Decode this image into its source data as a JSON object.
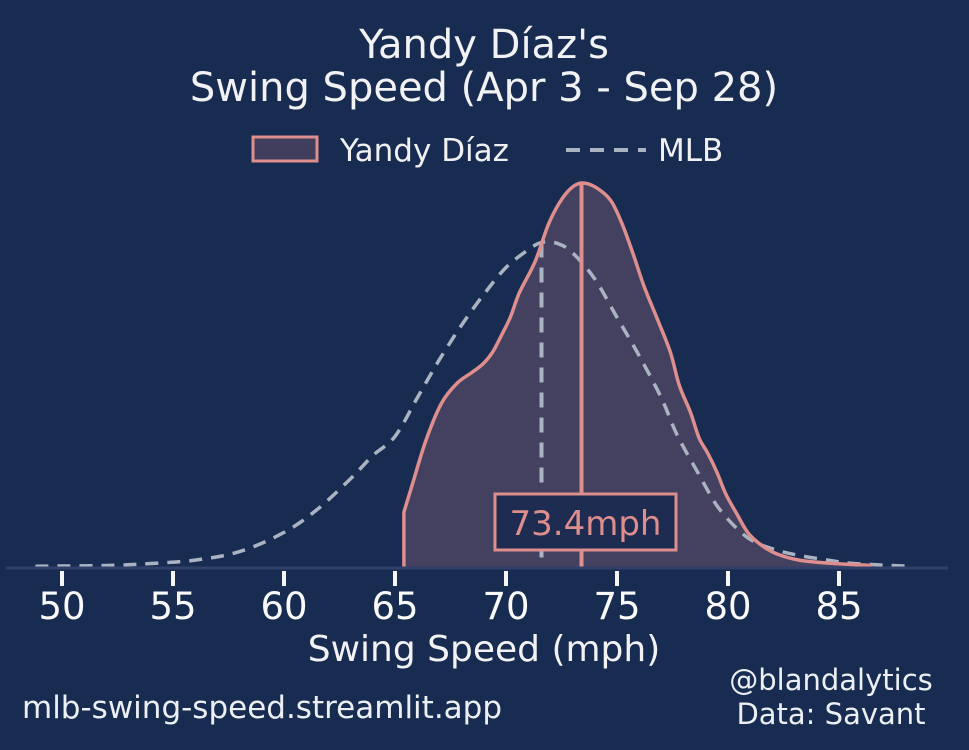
{
  "title": {
    "line1": "Yandy Díaz's",
    "line2": "Swing Speed (Apr 3 - Sep 28)"
  },
  "legend": {
    "player_label": "Yandy Díaz",
    "league_label": "MLB"
  },
  "annotation": {
    "median_label": "73.4mph"
  },
  "axis": {
    "label": "Swing Speed (mph)",
    "ticks": [
      "50",
      "55",
      "60",
      "65",
      "70",
      "75",
      "80",
      "85"
    ]
  },
  "footer": {
    "site": "mlb-swing-speed.streamlit.app",
    "handle": "@blandalytics",
    "source": "Data: Savant"
  },
  "colors": {
    "background": "#182b50",
    "player_line": "#dd8e8d",
    "player_fill": "#434060",
    "league_line": "#aab3c1",
    "text": "#f2f2f4",
    "axis_line": "#31406a",
    "annotation_fill": "#1d2c50"
  },
  "chart_data": {
    "type": "area",
    "title": "Yandy Díaz's Swing Speed (Apr 3 - Sep 28)",
    "xlabel": "Swing Speed (mph)",
    "xlim": [
      47.2,
      90.8
    ],
    "x_ticks": [
      50,
      55,
      60,
      65,
      70,
      75,
      80,
      85
    ],
    "grid": false,
    "legend_position": "top",
    "player_median_mph": 73.4,
    "league_mean_mph": 71.6,
    "series": [
      {
        "name": "Yandy Díaz",
        "style": "filled-kde",
        "points": [
          [
            65.4,
            0.0
          ],
          [
            65.4,
            0.143
          ],
          [
            65.8,
            0.219
          ],
          [
            66.4,
            0.331
          ],
          [
            67.1,
            0.427
          ],
          [
            67.8,
            0.479
          ],
          [
            68.5,
            0.508
          ],
          [
            69.0,
            0.531
          ],
          [
            69.4,
            0.56
          ],
          [
            69.8,
            0.604
          ],
          [
            70.2,
            0.651
          ],
          [
            70.6,
            0.714
          ],
          [
            71.3,
            0.794
          ],
          [
            71.9,
            0.891
          ],
          [
            72.4,
            0.948
          ],
          [
            72.9,
            0.985
          ],
          [
            73.4,
            1.0
          ],
          [
            74.0,
            0.99
          ],
          [
            74.7,
            0.956
          ],
          [
            75.2,
            0.898
          ],
          [
            75.7,
            0.82
          ],
          [
            76.2,
            0.734
          ],
          [
            76.8,
            0.648
          ],
          [
            77.4,
            0.56
          ],
          [
            77.8,
            0.474
          ],
          [
            78.3,
            0.404
          ],
          [
            78.7,
            0.336
          ],
          [
            79.1,
            0.295
          ],
          [
            79.5,
            0.247
          ],
          [
            79.9,
            0.19
          ],
          [
            80.4,
            0.138
          ],
          [
            80.9,
            0.089
          ],
          [
            81.5,
            0.057
          ],
          [
            82.2,
            0.034
          ],
          [
            83.2,
            0.018
          ],
          [
            84.6,
            0.01
          ],
          [
            86.5,
            0.004
          ]
        ]
      },
      {
        "name": "MLB",
        "style": "dashed-kde",
        "points": [
          [
            48.8,
            0.002
          ],
          [
            52.0,
            0.004
          ],
          [
            54.0,
            0.009
          ],
          [
            56.0,
            0.018
          ],
          [
            58.0,
            0.04
          ],
          [
            60.0,
            0.09
          ],
          [
            61.5,
            0.15
          ],
          [
            63.0,
            0.23
          ],
          [
            64.0,
            0.29
          ],
          [
            65.0,
            0.34
          ],
          [
            66.0,
            0.44
          ],
          [
            67.0,
            0.54
          ],
          [
            68.0,
            0.63
          ],
          [
            69.0,
            0.71
          ],
          [
            70.0,
            0.78
          ],
          [
            71.0,
            0.826
          ],
          [
            71.6,
            0.845
          ],
          [
            72.3,
            0.843
          ],
          [
            73.0,
            0.818
          ],
          [
            74.0,
            0.75
          ],
          [
            75.0,
            0.65
          ],
          [
            76.0,
            0.55
          ],
          [
            77.0,
            0.44
          ],
          [
            77.7,
            0.345
          ],
          [
            78.7,
            0.24
          ],
          [
            79.5,
            0.16
          ],
          [
            80.4,
            0.1
          ],
          [
            81.2,
            0.065
          ],
          [
            82.2,
            0.044
          ],
          [
            83.2,
            0.03
          ],
          [
            84.5,
            0.018
          ],
          [
            85.5,
            0.01
          ],
          [
            87.0,
            0.005
          ],
          [
            88.2,
            0.002
          ]
        ]
      }
    ]
  }
}
